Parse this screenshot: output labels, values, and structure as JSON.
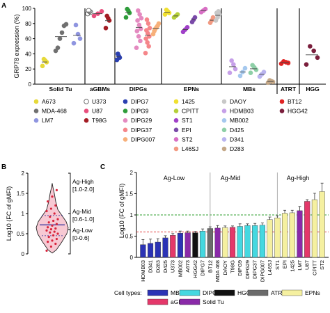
{
  "panels": {
    "a": "A",
    "b": "B",
    "c": "C"
  },
  "chart_data": [
    {
      "type": "scatter",
      "panel": "A",
      "ylabel": "GRP78 expression (%)",
      "ylim": [
        0,
        100
      ],
      "yticks": [
        0,
        20,
        40,
        60,
        80,
        100
      ],
      "groups": [
        "Solid Tu",
        "aGBMs",
        "DIPGs",
        "EPNs",
        "MBs",
        "ATRT",
        "HGG"
      ],
      "series": [
        {
          "name": "A673",
          "group": "Solid Tu",
          "color": "#e6d93a",
          "values": [
            24,
            29,
            31,
            33
          ]
        },
        {
          "name": "MDA-468",
          "group": "Solid Tu",
          "color": "#707070",
          "values": [
            44,
            48,
            60,
            68,
            77,
            79
          ]
        },
        {
          "name": "LM7",
          "group": "Solid Tu",
          "color": "#8f95e0",
          "values": [
            54,
            60,
            66,
            78
          ]
        },
        {
          "name": "U373",
          "group": "aGBMs",
          "color": "#ffffff",
          "values": [
            93,
            95,
            96,
            97
          ]
        },
        {
          "name": "U87",
          "group": "aGBMs",
          "color": "#e84f7d",
          "values": [
            90,
            93,
            96
          ]
        },
        {
          "name": "T98G",
          "group": "aGBMs",
          "color": "#a31c24",
          "values": [
            74,
            84,
            87,
            90
          ]
        },
        {
          "name": "DIPG7",
          "group": "DIPGs",
          "color": "#2a3fb0",
          "values": [
            32,
            35,
            37,
            40
          ]
        },
        {
          "name": "DIPG9",
          "group": "DIPGs",
          "color": "#2e9c3a",
          "values": [
            88,
            94,
            97,
            99
          ]
        },
        {
          "name": "DIPG29",
          "group": "DIPGs",
          "color": "#e48ac0",
          "values": [
            48,
            57,
            63,
            70,
            73,
            78,
            84,
            87,
            92,
            97
          ]
        },
        {
          "name": "DIPG37",
          "group": "DIPGs",
          "color": "#f5868a",
          "values": [
            41,
            50,
            55,
            60,
            63,
            67,
            71,
            74,
            80,
            85
          ]
        },
        {
          "name": "DIPG007",
          "group": "DIPGs",
          "color": "#f7b07a",
          "values": [
            66,
            70,
            73,
            75,
            77,
            80
          ]
        },
        {
          "name": "1425",
          "group": "EPNs",
          "color": "#f0e030",
          "values": [
            92,
            94,
            96,
            98
          ]
        },
        {
          "name": "CPITT",
          "group": "EPNs",
          "color": "#b5cf3a",
          "values": [
            88,
            90,
            92
          ]
        },
        {
          "name": "ST1",
          "group": "EPNs",
          "color": "#a040c8",
          "values": [
            69,
            72,
            75
          ]
        },
        {
          "name": "EPI",
          "group": "EPNs",
          "color": "#7a4aa8",
          "values": [
            82,
            85,
            88
          ]
        },
        {
          "name": "ST2",
          "group": "EPNs",
          "color": "#d86fc4",
          "values": [
            95,
            97,
            99
          ]
        },
        {
          "name": "L46SJ",
          "group": "EPNs",
          "color": "#f29a82",
          "values": [
            81,
            84,
            88
          ]
        },
        {
          "name": "DAOY",
          "group": "EPNs",
          "color": "#c8c8c8",
          "values": [
            84,
            88,
            92,
            94,
            96
          ]
        },
        {
          "name": "HDMB03",
          "group": "MBs",
          "color": "#c6a0e8",
          "values": [
            15,
            20,
            26,
            31
          ]
        },
        {
          "name": "MB002",
          "group": "MBs",
          "color": "#a5c8ee",
          "values": [
            11,
            16,
            21
          ]
        },
        {
          "name": "D425",
          "group": "MBs",
          "color": "#8ecfa7",
          "values": [
            15,
            19,
            22,
            25
          ]
        },
        {
          "name": "D341",
          "group": "MBs",
          "color": "#b9b4ef",
          "values": [
            10,
            13,
            16
          ]
        },
        {
          "name": "D283",
          "group": "MBs",
          "color": "#c4a888",
          "values": [
            2,
            3,
            4,
            5
          ]
        },
        {
          "name": "BT12",
          "group": "ATRT",
          "color": "#e02424",
          "values": [
            27,
            28,
            29,
            30
          ]
        },
        {
          "name": "HGG42",
          "group": "HGG",
          "color": "#7a1e3c",
          "values": [
            26,
            35,
            44,
            50
          ]
        }
      ],
      "legend_columns": [
        [
          "A673",
          "MDA-468",
          "LM7"
        ],
        [
          "U373",
          "U87",
          "T98G"
        ],
        [
          "DIPG7",
          "DIPG9",
          "DIPG29",
          "DIPG37",
          "DIPG007"
        ],
        [
          "1425",
          "CPITT",
          "ST1",
          "EPI",
          "ST2",
          "L46SJ"
        ],
        [
          "DAOY",
          "HDMB03",
          "MB002",
          "D425",
          "D341",
          "D283"
        ],
        [
          "BT12",
          "HGG42"
        ]
      ]
    },
    {
      "type": "violin",
      "panel": "B",
      "ylabel": "Log10 (FC of gMFI)",
      "ylim": [
        0,
        2.0
      ],
      "yticks": [
        0,
        0.5,
        1.0,
        1.5,
        2.0
      ],
      "values": [
        0.08,
        0.18,
        0.25,
        0.3,
        0.33,
        0.37,
        0.42,
        0.46,
        0.5,
        0.53,
        0.55,
        0.58,
        0.61,
        0.63,
        0.66,
        0.7,
        0.74,
        0.78,
        0.82,
        0.86,
        0.92,
        1.0,
        1.06,
        1.12,
        1.2,
        1.3,
        1.42,
        1.58
      ],
      "median": 0.72,
      "quartiles": [
        0.45,
        0.95
      ],
      "annotations": [
        {
          "label": "Ag-High",
          "range": "[1.0-2.0]"
        },
        {
          "label": "Ag-Mid",
          "range": "[0.6-1.0]"
        },
        {
          "label": "Ag-Low",
          "range": "[0-0.6]"
        }
      ]
    },
    {
      "type": "bar",
      "panel": "C",
      "ylabel": "Log10 (FC of gMFI)",
      "ylim": [
        0,
        2
      ],
      "yticks": [
        0,
        0.5,
        1,
        1.5,
        2
      ],
      "reference_lines": [
        0.6,
        1.0
      ],
      "sections": [
        {
          "label": "Ag-Low",
          "start": 0,
          "end": 9
        },
        {
          "label": "Ag-Mid",
          "start": 10,
          "end": 18
        },
        {
          "label": "Ag-High",
          "start": 19,
          "end": 28
        }
      ],
      "categories": [
        "HDMB03",
        "D341",
        "D283",
        "D425",
        "U373",
        "MB002",
        "A673",
        "HGG42",
        "DIPG7",
        "BT12",
        "MDA 468",
        "DAOY",
        "T98G",
        "DIPG9",
        "DIPG29",
        "DIPG37",
        "DIPG007",
        "L46SJ",
        "ST1",
        "EPI",
        "1425",
        "LM7",
        "U87",
        "CPITT",
        "ST2"
      ],
      "values": [
        0.3,
        0.33,
        0.36,
        0.46,
        0.52,
        0.57,
        0.58,
        0.58,
        0.62,
        0.68,
        0.69,
        0.7,
        0.71,
        0.73,
        0.75,
        0.75,
        0.76,
        0.89,
        0.93,
        1.04,
        1.05,
        1.1,
        1.32,
        1.36,
        1.55
      ],
      "errors": [
        0.12,
        0.1,
        0.08,
        0.05,
        0.04,
        0.05,
        0.04,
        0.03,
        0.05,
        0.04,
        0.06,
        0.04,
        0.03,
        0.06,
        0.04,
        0.05,
        0.05,
        0.06,
        0.05,
        0.07,
        0.06,
        0.1,
        0.04,
        0.15,
        0.2
      ],
      "types": [
        "MBs",
        "MBs",
        "MBs",
        "MBs",
        "aGBMs",
        "MBs",
        "Solid Tu",
        "HGG",
        "DIPGs",
        "ATRT",
        "Solid Tu",
        "EPNs",
        "aGBMs",
        "DIPGs",
        "DIPGs",
        "DIPGs",
        "DIPGs",
        "EPNs",
        "EPNs",
        "EPNs",
        "EPNs",
        "Solid Tu",
        "aGBMs",
        "EPNs",
        "EPNs"
      ],
      "type_colors": {
        "MBs": "#2b33b5",
        "DIPGs": "#45d8e0",
        "HGG": "#111111",
        "ATRT": "#6b6b6b",
        "EPNs": "#f5f0a0",
        "aGBMs": "#e4386a",
        "Solid Tu": "#8a2aa8"
      },
      "legend_title": "Cell types:",
      "legend_items": [
        "MBs",
        "DIPGs",
        "HGG",
        "ATRT",
        "EPNs",
        "aGBMs",
        "Solid Tu"
      ]
    }
  ]
}
